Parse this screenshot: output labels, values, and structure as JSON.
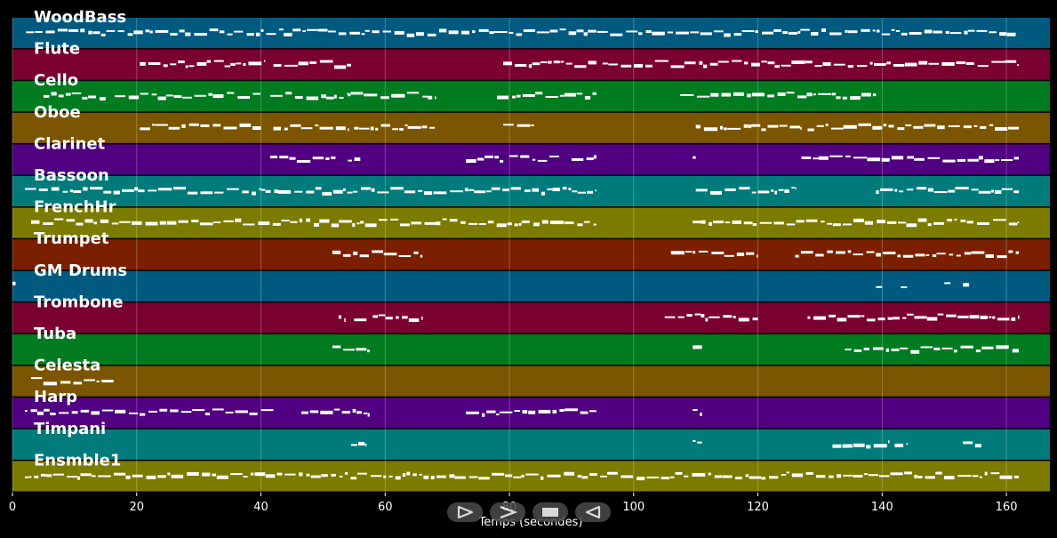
{
  "chart_data": {
    "type": "piano-roll",
    "xlabel": "Temps (secondes)",
    "xlim": [
      0,
      167
    ],
    "xticks": [
      0,
      20,
      40,
      60,
      80,
      100,
      120,
      140,
      160
    ],
    "grid": true,
    "tracks": [
      {
        "name": "WoodBass",
        "color": "#005a80",
        "segments": [
          [
            2.2,
            161.5
          ]
        ]
      },
      {
        "name": "Flute",
        "color": "#7a0030",
        "segments": [
          [
            20.5,
            40.5
          ],
          [
            42,
            54.5
          ],
          [
            79,
            94
          ],
          [
            95,
            162
          ]
        ]
      },
      {
        "name": "Cello",
        "color": "#007b20",
        "segments": [
          [
            5,
            15
          ],
          [
            16.5,
            40
          ],
          [
            41.5,
            54
          ],
          [
            54,
            68
          ],
          [
            78,
            94
          ],
          [
            107.5,
            139
          ]
        ]
      },
      {
        "name": "Oboe",
        "color": "#7b5500",
        "segments": [
          [
            20.5,
            40
          ],
          [
            42,
            54
          ],
          [
            55,
            68
          ],
          [
            79,
            84
          ],
          [
            110,
            127
          ],
          [
            128,
            162
          ]
        ]
      },
      {
        "name": "Clarinet",
        "color": "#500080",
        "segments": [
          [
            41.5,
            52
          ],
          [
            54,
            56
          ],
          [
            73,
            79
          ],
          [
            80,
            88
          ],
          [
            90,
            94
          ],
          [
            109.5,
            110
          ],
          [
            127,
            162
          ]
        ]
      },
      {
        "name": "Bassoon",
        "color": "#007b7b",
        "segments": [
          [
            2,
            40
          ],
          [
            40,
            94
          ],
          [
            110,
            126
          ],
          [
            139,
            162
          ]
        ]
      },
      {
        "name": "FrenchHr",
        "color": "#7b7b00",
        "segments": [
          [
            3,
            94
          ],
          [
            109.5,
            162
          ]
        ]
      },
      {
        "name": "Trumpet",
        "color": "#7a2000",
        "segments": [
          [
            51.5,
            66
          ],
          [
            106,
            120
          ],
          [
            126,
            162
          ]
        ]
      },
      {
        "name": "GM Drums",
        "color": "#005a80",
        "segments": [
          [
            0,
            0.5
          ],
          [
            139,
            140
          ],
          [
            143,
            144
          ],
          [
            150,
            151
          ],
          [
            153,
            154
          ]
        ]
      },
      {
        "name": "Trombone",
        "color": "#7a0030",
        "segments": [
          [
            52.5,
            53.5
          ],
          [
            55,
            57
          ],
          [
            58,
            66
          ],
          [
            105,
            120
          ],
          [
            128,
            162
          ]
        ]
      },
      {
        "name": "Tuba",
        "color": "#007b20",
        "segments": [
          [
            51.5,
            57.5
          ],
          [
            109.5,
            111
          ],
          [
            134,
            162
          ]
        ]
      },
      {
        "name": "Celesta",
        "color": "#7b5500",
        "segments": [
          [
            3,
            16.5
          ]
        ]
      },
      {
        "name": "Harp",
        "color": "#500080",
        "segments": [
          [
            2,
            42
          ],
          [
            46.5,
            57.5
          ],
          [
            73,
            94
          ],
          [
            109.5,
            111
          ]
        ]
      },
      {
        "name": "Timpani",
        "color": "#007b7b",
        "segments": [
          [
            54.5,
            57
          ],
          [
            109.5,
            111
          ],
          [
            132,
            141
          ],
          [
            142,
            144
          ],
          [
            153,
            156
          ]
        ]
      },
      {
        "name": "Ensmble1",
        "color": "#7b7b00",
        "segments": [
          [
            2,
            162
          ]
        ]
      }
    ]
  },
  "controls": [
    {
      "name": "play-button",
      "icon": "play-icon"
    },
    {
      "name": "forward-button",
      "icon": "forward-icon"
    },
    {
      "name": "stop-button",
      "icon": "stop-icon"
    },
    {
      "name": "rewind-button",
      "icon": "rewind-icon"
    }
  ]
}
